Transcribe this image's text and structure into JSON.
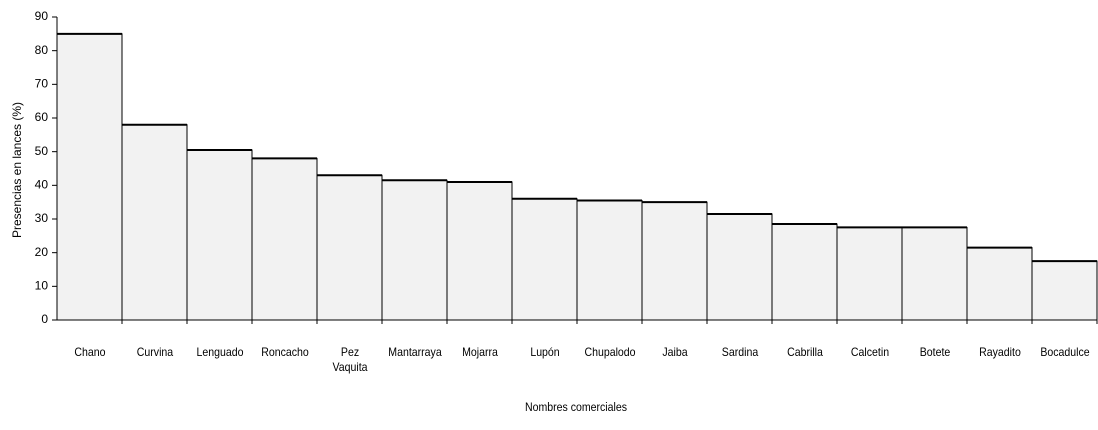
{
  "chart_data": {
    "type": "bar",
    "categories": [
      "Chano",
      "Curvina",
      "Lenguado",
      "Roncacho",
      "Pez\nVaquita",
      "Mantarraya",
      "Mojarra",
      "Lupón",
      "Chupalodo",
      "Jaiba",
      "Sardina",
      "Cabrilla",
      "Calcetin",
      "Botete",
      "Rayadito",
      "Bocadulce"
    ],
    "values": [
      85,
      58,
      50.5,
      48,
      43,
      41.5,
      41,
      36,
      35.5,
      35,
      31.5,
      28.5,
      27.5,
      27.5,
      21.5,
      17.5
    ],
    "color": "#f2f2f2",
    "ylim": [
      0,
      90
    ],
    "yticks": [
      0,
      10,
      20,
      30,
      40,
      50,
      60,
      70,
      80,
      90
    ],
    "xlabel": "Nombres comerciales",
    "ylabel": "Presencias en lances (%)",
    "grid": false
  }
}
